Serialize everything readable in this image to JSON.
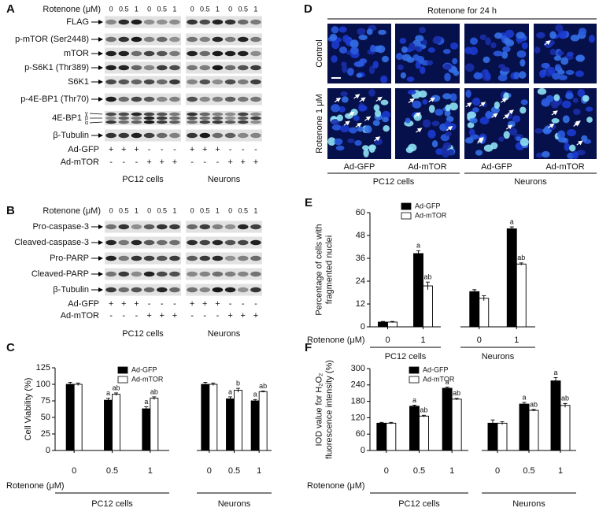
{
  "blots": [
    {
      "label": "A",
      "rotenone_label": "Rotenone (μM)",
      "doses": [
        "0",
        "0.5",
        "1",
        "0",
        "0.5",
        "1",
        "0",
        "0.5",
        "1",
        "0",
        "0.5",
        "1"
      ],
      "rows": [
        {
          "name": "FLAG"
        },
        {
          "name": "p-mTOR (Ser2448)"
        },
        {
          "name": "mTOR"
        },
        {
          "name": "p-S6K1 (Thr389)"
        },
        {
          "name": "S6K1"
        },
        {
          "name": "p-4E-BP1 (Thr70)"
        },
        {
          "name": "4E-BP1",
          "isoforms": [
            "γ",
            "β",
            "α"
          ]
        },
        {
          "name": "β-Tubulin"
        }
      ],
      "treatments": [
        {
          "name": "Ad-GFP",
          "signs": [
            "+",
            "+",
            "+",
            "-",
            "-",
            "-",
            "+",
            "+",
            "+",
            "-",
            "-",
            "-"
          ]
        },
        {
          "name": "Ad-mTOR",
          "signs": [
            "-",
            "-",
            "-",
            "+",
            "+",
            "+",
            "-",
            "-",
            "-",
            "+",
            "+",
            "+"
          ]
        }
      ],
      "groups": [
        "PC12 cells",
        "Neurons"
      ]
    },
    {
      "label": "B",
      "rotenone_label": "Rotenone (μM)",
      "doses": [
        "0",
        "0.5",
        "1",
        "0",
        "0.5",
        "1",
        "0",
        "0.5",
        "1",
        "0",
        "0.5",
        "1"
      ],
      "rows": [
        {
          "name": "Pro-caspase-3"
        },
        {
          "name": "Cleaved-caspase-3"
        },
        {
          "name": "Pro-PARP"
        },
        {
          "name": "Cleaved-PARP"
        },
        {
          "name": "β-Tubulin"
        }
      ],
      "treatments": [
        {
          "name": "Ad-GFP",
          "signs": [
            "+",
            "+",
            "+",
            "-",
            "-",
            "-",
            "+",
            "+",
            "+",
            "-",
            "-",
            "-"
          ]
        },
        {
          "name": "Ad-mTOR",
          "signs": [
            "-",
            "-",
            "-",
            "+",
            "+",
            "+",
            "-",
            "-",
            "-",
            "+",
            "+",
            "+"
          ]
        }
      ],
      "groups": [
        "PC12 cells",
        "Neurons"
      ]
    }
  ],
  "images": {
    "label": "D",
    "title": "Rotenone for 24 h",
    "rows": [
      "Control",
      "Rotenone 1 μM"
    ],
    "columns": [
      "Ad-GFP",
      "Ad-mTOR",
      "Ad-GFP",
      "Ad-mTOR"
    ],
    "groups": [
      "PC12 cells",
      "Neurons"
    ]
  },
  "chart_data": [
    {
      "type": "bar",
      "panel": "C",
      "y_label": [
        "Cell Viability (%)"
      ],
      "x_label": "Rotenone (μM)",
      "groups": [
        {
          "name": "PC12 cells",
          "categories": [
            "0",
            "0.5",
            "1"
          ]
        },
        {
          "name": "Neurons",
          "categories": [
            "0",
            "0.5",
            "1"
          ]
        }
      ],
      "ylim": [
        0,
        125
      ],
      "yticks": [
        0,
        25,
        50,
        75,
        100,
        125
      ],
      "series": [
        {
          "name": "Ad-GFP",
          "color": "#000000",
          "values": [
            100,
            76,
            63,
            100,
            78,
            75
          ],
          "errors": [
            3,
            3,
            3,
            3,
            3,
            2
          ],
          "annotations": [
            null,
            "a",
            "a",
            null,
            "a",
            "a"
          ]
        },
        {
          "name": "Ad-mTOR",
          "color": "#ffffff",
          "values": [
            100,
            85,
            79,
            100,
            91,
            89
          ],
          "errors": [
            2,
            2,
            2,
            2,
            3,
            1
          ],
          "annotations": [
            null,
            "ab",
            "ab",
            null,
            "b",
            "ab"
          ]
        }
      ]
    },
    {
      "type": "bar",
      "panel": "E",
      "y_label": [
        "Percentage of cells with",
        "fragmented nuclei"
      ],
      "x_label": "Rotenone (μM)",
      "groups": [
        {
          "name": "PC12 cells",
          "categories": [
            "0",
            "1"
          ]
        },
        {
          "name": "Neurons",
          "categories": [
            "0",
            "1"
          ]
        }
      ],
      "ylim": [
        0,
        60
      ],
      "yticks": [
        0,
        12,
        24,
        36,
        48,
        60
      ],
      "series": [
        {
          "name": "Ad-GFP",
          "color": "#000000",
          "values": [
            2.5,
            38.5,
            18.5,
            51.5
          ],
          "errors": [
            0.3,
            1.5,
            1,
            1
          ],
          "annotations": [
            null,
            "a",
            null,
            "a"
          ]
        },
        {
          "name": "Ad-mTOR",
          "color": "#ffffff",
          "values": [
            2.5,
            21.5,
            15,
            33
          ],
          "errors": [
            0.3,
            2,
            1.3,
            0.6
          ],
          "annotations": [
            null,
            "ab",
            null,
            "ab"
          ]
        }
      ]
    },
    {
      "type": "bar",
      "panel": "F",
      "y_label": [
        "IOD value for H₂O₂",
        "fluorescence intensity (%)"
      ],
      "x_label": "Rotenone (μM)",
      "groups": [
        {
          "name": "PC12 cells",
          "categories": [
            "0",
            "0.5",
            "1"
          ]
        },
        {
          "name": "Neurons",
          "categories": [
            "0",
            "0.5",
            "1"
          ]
        }
      ],
      "ylim": [
        0,
        300
      ],
      "yticks": [
        0,
        60,
        120,
        180,
        240,
        300
      ],
      "series": [
        {
          "name": "Ad-GFP",
          "color": "#000000",
          "values": [
            100,
            162,
            228,
            100,
            170,
            255
          ],
          "errors": [
            3,
            4,
            4,
            12,
            6,
            12
          ],
          "annotations": [
            null,
            "a",
            "a",
            null,
            "a",
            "a"
          ]
        },
        {
          "name": "Ad-mTOR",
          "color": "#ffffff",
          "values": [
            100,
            126,
            188,
            100,
            147,
            165
          ],
          "errors": [
            3,
            3,
            3,
            5,
            3,
            7
          ],
          "annotations": [
            null,
            "ab",
            "ab",
            null,
            "ab",
            "ab"
          ]
        }
      ]
    }
  ]
}
